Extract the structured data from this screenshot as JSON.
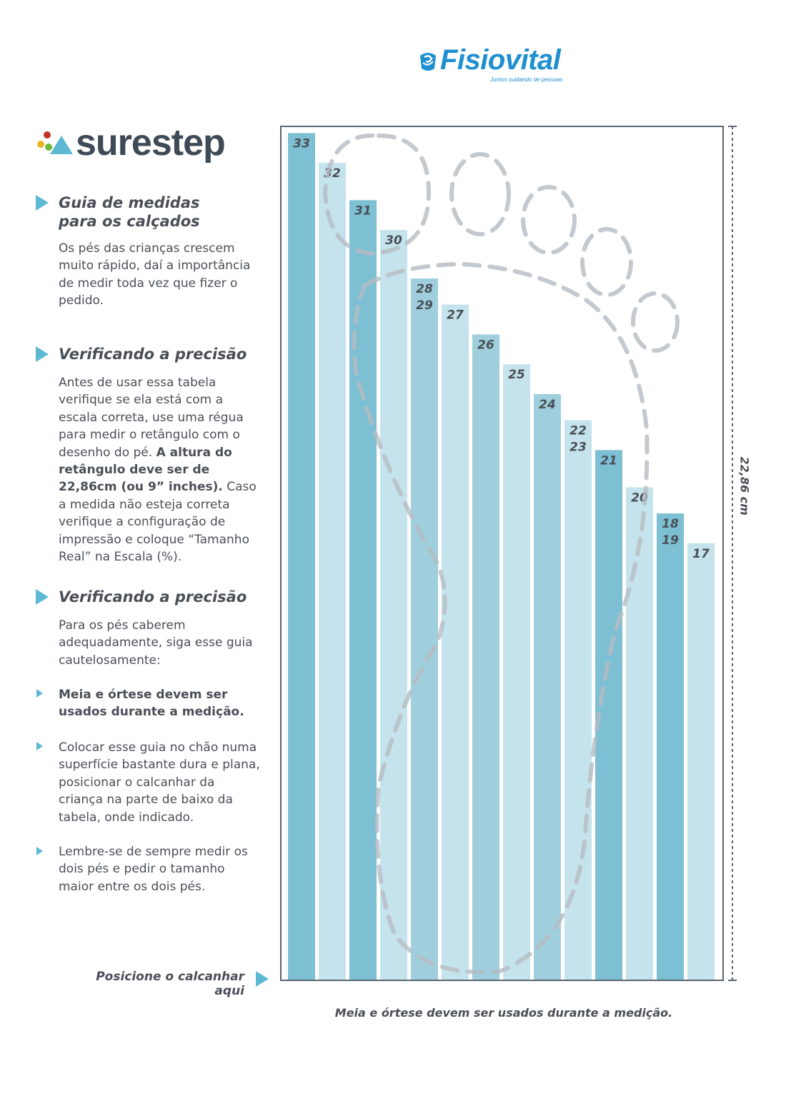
{
  "brand": {
    "fisiovital_name": "Fisiovital",
    "fisiovital_tagline": "Juntos cuidando de pessoas",
    "surestep_name": "surestep",
    "fisiovital_color": "#1e8fd0",
    "surestep_color": "#3f4a57"
  },
  "sections": [
    {
      "title": "Guia de medidas\npara os calçados",
      "paragraph": "Os pés das crianças crescem muito rápido, daí a importância de medir toda vez que fizer o pedido."
    },
    {
      "title": "Verificando a precisão",
      "paragraph_before": "Antes de usar essa tabela verifique se ela está com a escala correta, use uma régua para medir o retângulo com o desenho do pé. ",
      "paragraph_bold": "A altura do retângulo deve ser de 22,86cm (ou 9” inches).",
      "paragraph_after": " Caso a medida não esteja correta verifique a configuração de impressão e coloque “Tamanho Real” na Escala (%)."
    },
    {
      "title": "Verificando a precisão",
      "paragraph": "Para os pés caberem adequadamente, siga esse guia cautelosamente:",
      "bullets": [
        "Meia e órtese devem ser usados durante a medição.",
        "Colocar esse guia no chão numa superfície bastante dura e plana, posicionar o calcanhar da criança na parte de baixo da tabela, onde indicado.",
        "Lembre-se de sempre medir os dois pés e pedir o tamanho maior entre os dois pés."
      ]
    }
  ],
  "heel_instruction": "Posicione o calcanhar aqui",
  "footer_note": "Meia e órtese devem ser usados durante a medição.",
  "ruler_label": "22,86 cm",
  "accent_color": "#5db9d3",
  "chart_data": {
    "type": "bar",
    "categories": [
      "33",
      "32",
      "31",
      "30",
      "28\n29",
      "27",
      "26",
      "25",
      "24",
      "22\n23",
      "21",
      "20",
      "18\n19",
      "17"
    ],
    "values": [
      22.7,
      21.9,
      20.9,
      20.1,
      18.8,
      18.1,
      17.3,
      16.5,
      15.7,
      15.0,
      14.2,
      13.2,
      12.5,
      11.7
    ],
    "ylim": [
      0,
      22.86
    ],
    "ylabel": "22,86 cm",
    "colors": [
      "#7dbfd3",
      "#c5e3ec",
      "#7dbfd3",
      "#c5e3ec",
      "#9fcfdd",
      "#c5e3ec",
      "#9fcfdd",
      "#c5e3ec",
      "#9fcfdd",
      "#c5e3ec",
      "#7dbfd3",
      "#c5e3ec",
      "#7dbfd3",
      "#c5e3ec"
    ]
  }
}
